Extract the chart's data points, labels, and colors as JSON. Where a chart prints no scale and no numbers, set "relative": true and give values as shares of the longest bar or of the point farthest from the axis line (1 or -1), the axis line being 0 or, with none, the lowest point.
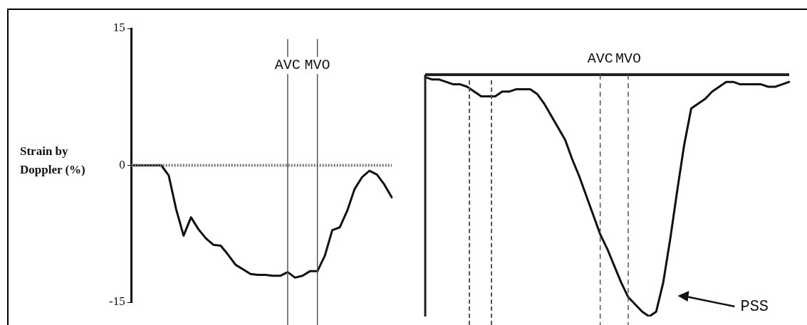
{
  "chart_data": [
    {
      "type": "line",
      "ylabel": "Strain by Doppler (%)",
      "categories": [
        null,
        null,
        null,
        null,
        null,
        null,
        null,
        null,
        null,
        null,
        null,
        null,
        null,
        null,
        null,
        null,
        null,
        null,
        null,
        null,
        null,
        "AVC",
        null,
        null,
        null,
        "MVO",
        null,
        null,
        null,
        null,
        null,
        null,
        null,
        null,
        null,
        null
      ],
      "ylim": [
        -15,
        15
      ],
      "yticks": [
        15,
        0,
        -15
      ],
      "grid": false,
      "legend": false,
      "marker": "none",
      "line_style": "solid",
      "series": [
        {
          "color": "#111111",
          "values": [
            0,
            0,
            0,
            0,
            0,
            -1.1,
            -4.8,
            -7.7,
            -5.7,
            -7.0,
            -8.0,
            -8.7,
            -8.8,
            -9.8,
            -10.9,
            -11.4,
            -11.9,
            -12.0,
            -12.0,
            -12.1,
            -12.1,
            -11.7,
            -12.3,
            -12.1,
            -11.6,
            -11.6,
            -9.9,
            -7.1,
            -6.8,
            -5.0,
            -2.6,
            -1.3,
            -0.6,
            -1.0,
            -2.1,
            -3.5
          ]
        }
      ],
      "ref_lines": [
        {
          "axis": "y",
          "value": 0,
          "color": "#777777",
          "line_style": "dotted"
        },
        {
          "axis": "x",
          "value": "AVC",
          "color": "#555555",
          "line_style": "solid"
        },
        {
          "axis": "x",
          "value": "MVO",
          "color": "#555555",
          "line_style": "solid"
        }
      ]
    },
    {
      "type": "line",
      "relative": true,
      "categories": [
        null,
        null,
        null,
        null,
        null,
        null,
        null,
        null,
        null,
        null,
        null,
        null,
        null,
        null,
        null,
        null,
        null,
        null,
        null,
        null,
        null,
        null,
        null,
        null,
        null,
        "AVC",
        null,
        null,
        null,
        "MVO",
        null,
        null,
        null,
        null,
        null,
        null,
        null,
        null,
        null,
        null,
        null,
        null,
        null,
        null,
        null,
        null,
        null,
        null,
        null,
        null,
        null,
        null,
        null
      ],
      "grid": false,
      "legend": false,
      "marker": "none",
      "line_style": "solid",
      "series": [
        {
          "color": "#111111",
          "values": [
            -0.01,
            -0.02,
            -0.02,
            -0.03,
            -0.04,
            -0.04,
            -0.05,
            -0.07,
            -0.09,
            -0.09,
            -0.09,
            -0.07,
            -0.07,
            -0.06,
            -0.06,
            -0.06,
            -0.08,
            -0.12,
            -0.17,
            -0.22,
            -0.27,
            -0.35,
            -0.42,
            -0.5,
            -0.58,
            -0.66,
            -0.72,
            -0.79,
            -0.86,
            -0.92,
            -0.95,
            -0.98,
            -1,
            -0.98,
            -0.86,
            -0.68,
            -0.48,
            -0.29,
            -0.14,
            -0.12,
            -0.1,
            -0.07,
            -0.05,
            -0.03,
            -0.03,
            -0.04,
            -0.04,
            -0.04,
            -0.04,
            -0.05,
            -0.05,
            -0.04,
            -0.03
          ]
        }
      ],
      "ref_lines": [
        {
          "axis": "x",
          "value": "AVC",
          "color": "#555555",
          "line_style": "dashed"
        },
        {
          "axis": "x",
          "value": "MVO",
          "color": "#555555",
          "line_style": "dashed"
        }
      ],
      "annotations": [
        "PSS"
      ]
    }
  ]
}
